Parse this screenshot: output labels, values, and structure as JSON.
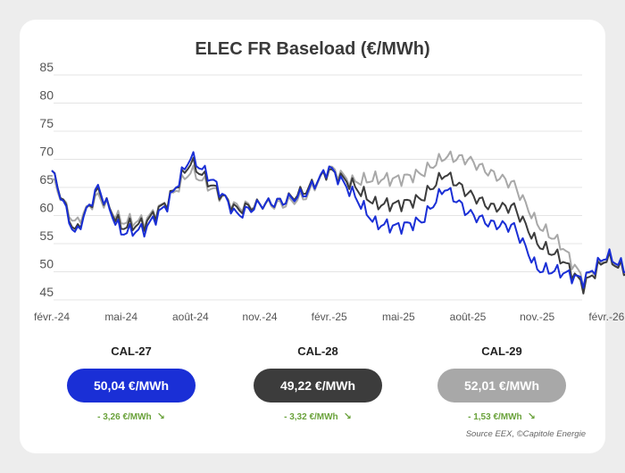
{
  "chart_data": {
    "type": "line",
    "title": "ELEC FR Baseload (€/MWh)",
    "ylim": [
      45,
      85
    ],
    "yticks": [
      45,
      50,
      55,
      60,
      65,
      70,
      75,
      80,
      85
    ],
    "xticks": [
      "févr.-24",
      "mai-24",
      "août-24",
      "nov.-24",
      "févr.-25",
      "mai-25",
      "août-25",
      "nov.-25",
      "févr.-26"
    ],
    "grid": true,
    "x": [
      "févr.-24",
      "mars-24",
      "avr.-24",
      "mai-24",
      "juin-24",
      "juil.-24",
      "août-24",
      "sept.-24",
      "oct.-24",
      "nov.-24",
      "déc.-24",
      "janv.-25",
      "févr.-25",
      "mars-25",
      "avr.-25",
      "mai-25",
      "juin-25",
      "juil.-25",
      "août-25",
      "sept.-25",
      "oct.-25",
      "nov.-25",
      "déc.-25",
      "janv.-26",
      "févr.-26",
      "mars-26"
    ],
    "series": [
      {
        "name": "CAL-27",
        "color": "#1a2fd6",
        "values": [
          68,
          56.5,
          65,
          57,
          57.5,
          62,
          70.5,
          66,
          60,
          62,
          62.5,
          64,
          68.5,
          64,
          58.5,
          58,
          59,
          65,
          60.5,
          58.5,
          58,
          50.5,
          50,
          48.5,
          53,
          50
        ]
      },
      {
        "name": "CAL-28",
        "color": "#3c3c3c",
        "values": [
          68,
          57,
          64.5,
          58,
          58.5,
          62.5,
          69.5,
          65,
          61,
          62,
          62.5,
          64.5,
          68,
          65.5,
          62,
          62,
          63,
          67.5,
          64,
          61.5,
          61.5,
          55,
          52.5,
          47.5,
          52.5,
          49.5
        ]
      },
      {
        "name": "CAL-29",
        "color": "#a8a8a8",
        "values": [
          66.5,
          58.5,
          63.5,
          59,
          59,
          62.5,
          68,
          64.5,
          61.5,
          62,
          62,
          63.5,
          68.5,
          66,
          66.5,
          66.5,
          67.5,
          70.5,
          70,
          67.5,
          65.5,
          58.5,
          55,
          48.5,
          52.5,
          50
        ]
      }
    ]
  },
  "cards": [
    {
      "label": "CAL-27",
      "price": "50,04 €/MWh",
      "delta": "- 3,26 €/MWh",
      "color": "#1a2fd6"
    },
    {
      "label": "CAL-28",
      "price": "49,22 €/MWh",
      "delta": "- 3,32 €/MWh",
      "color": "#3c3c3c"
    },
    {
      "label": "CAL-29",
      "price": "52,01 €/MWh",
      "delta": "- 1,53 €/MWh",
      "color": "#a8a8a8"
    }
  ],
  "trend_icon": "arrow-down-right-icon",
  "trend_glyph": "↘",
  "source": "Source EEX, ©Capitole Energie"
}
